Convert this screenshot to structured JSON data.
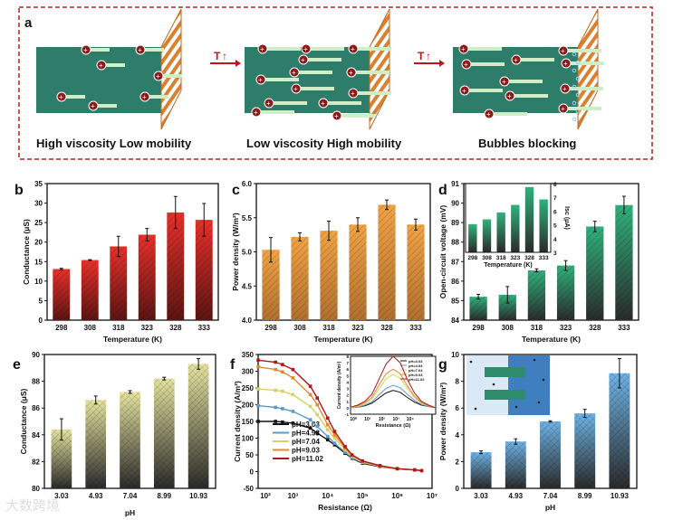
{
  "panel_a": {
    "label": "a",
    "captions": [
      "High viscosity Low mobility",
      "Low viscosity High mobility",
      "Bubbles blocking"
    ],
    "arrow_label": "T",
    "colors": {
      "liquid": "#2e7d6b",
      "membrane": "#d9812e",
      "ion": "#8b1a1a",
      "frame": "#b22222"
    }
  },
  "chart_data": [
    {
      "panel": "b",
      "type": "bar",
      "title": "",
      "xlabel": "Temperature (K)",
      "ylabel": "Conductance (μS)",
      "categories": [
        "298",
        "308",
        "318",
        "323",
        "328",
        "333"
      ],
      "values": [
        13.1,
        15.4,
        18.9,
        21.9,
        27.6,
        25.7
      ],
      "errors": [
        0.2,
        0.1,
        2.6,
        1.6,
        4.1,
        4.2
      ],
      "ylim": [
        0,
        35
      ],
      "yticks": [
        0,
        5,
        10,
        15,
        20,
        25,
        30,
        35
      ],
      "color": "#e8302a"
    },
    {
      "panel": "c",
      "type": "bar",
      "title": "",
      "xlabel": "Temperature (K)",
      "ylabel": "Power density (W/m²)",
      "categories": [
        "298",
        "308",
        "318",
        "323",
        "328",
        "333"
      ],
      "values": [
        5.03,
        5.22,
        5.31,
        5.4,
        5.69,
        5.4
      ],
      "errors": [
        0.18,
        0.06,
        0.14,
        0.1,
        0.07,
        0.08
      ],
      "ylim": [
        4.0,
        6.0
      ],
      "yticks": [
        "4.0",
        "4.5",
        "5.0",
        "5.5",
        "6.0"
      ],
      "color": "#f0a345"
    },
    {
      "panel": "d",
      "type": "bar",
      "title": "",
      "xlabel": "Temperature (K)",
      "ylabel": "Open-circuit voltage (mV)",
      "categories": [
        "298",
        "308",
        "318",
        "323",
        "328",
        "333"
      ],
      "values": [
        85.2,
        85.3,
        86.55,
        86.8,
        88.8,
        89.9
      ],
      "errors": [
        0.12,
        0.42,
        0.08,
        0.25,
        0.27,
        0.45
      ],
      "ylim": [
        84,
        91
      ],
      "yticks": [
        84,
        85,
        86,
        87,
        88,
        89,
        90,
        91
      ],
      "color": "#2fb27c",
      "inset": {
        "type": "bar",
        "xlabel": "Temperature (K)",
        "ylabel": "Isc (μA)",
        "categories": [
          "298",
          "308",
          "318",
          "323",
          "328",
          "333"
        ],
        "values": [
          5.05,
          5.4,
          5.9,
          6.45,
          7.75,
          6.85
        ],
        "ylim": [
          3,
          8
        ],
        "yticks": [
          3,
          4,
          5,
          6,
          7,
          8
        ]
      }
    },
    {
      "panel": "e",
      "type": "bar",
      "title": "",
      "xlabel": "pH",
      "ylabel": "Conductance (μS)",
      "categories": [
        "3.03",
        "4.93",
        "7.04",
        "8.99",
        "10.93"
      ],
      "values": [
        84.4,
        86.6,
        87.2,
        88.2,
        89.3
      ],
      "errors": [
        0.8,
        0.3,
        0.1,
        0.1,
        0.4
      ],
      "ylim": [
        80,
        90
      ],
      "yticks": [
        80,
        82,
        84,
        86,
        88,
        90
      ],
      "color": "#e6e4a0"
    },
    {
      "panel": "f",
      "type": "line",
      "title": "",
      "xlabel": "Resistance (Ω)",
      "ylabel": "Current density (A/m²)",
      "xscale": "log",
      "xlim": [
        2,
        7
      ],
      "xticks": [
        "10²",
        "10³",
        "10⁴",
        "10⁵",
        "10⁶",
        "10⁷"
      ],
      "ylim": [
        -50,
        350
      ],
      "yticks": [
        -50,
        0,
        50,
        100,
        150,
        200,
        250,
        300,
        350
      ],
      "legend": "bottom-left",
      "x_log10": [
        2,
        2.5,
        2.7,
        3,
        3.5,
        3.7,
        4,
        4.2,
        4.5,
        4.7,
        5,
        5.5,
        6,
        6.5,
        6.7
      ],
      "series": [
        {
          "name": "pH=3.03",
          "color": "#111111",
          "values": [
            150,
            150,
            148,
            145,
            130,
            115,
            95,
            80,
            55,
            40,
            25,
            15,
            8,
            5,
            3
          ]
        },
        {
          "name": "pH=4.93",
          "color": "#5b9bc8",
          "values": [
            197,
            192,
            188,
            180,
            155,
            135,
            105,
            85,
            58,
            42,
            27,
            16,
            8,
            5,
            3
          ]
        },
        {
          "name": "pH=7.04",
          "color": "#d8cf6a",
          "values": [
            247,
            243,
            240,
            230,
            195,
            170,
            125,
            100,
            65,
            45,
            28,
            16,
            8,
            5,
            3
          ]
        },
        {
          "name": "pH=9.03",
          "color": "#e08a2a",
          "values": [
            313,
            305,
            298,
            280,
            230,
            200,
            140,
            110,
            70,
            48,
            30,
            17,
            8,
            5,
            3
          ]
        },
        {
          "name": "pH=11.02",
          "color": "#b3161c",
          "values": [
            333,
            327,
            320,
            305,
            255,
            220,
            160,
            120,
            75,
            50,
            32,
            18,
            9,
            5,
            3
          ]
        }
      ],
      "inset": {
        "type": "line",
        "xlabel": "Resistance (Ω)",
        "ylabel": "Current density (A/m²)",
        "xlim": [
          0,
          6
        ],
        "xticks": [
          "10⁰",
          "10¹",
          "10²",
          "10³",
          "10⁴",
          "10⁵"
        ],
        "ylim": [
          -1,
          8
        ],
        "yticks": [
          -1,
          0,
          1,
          2,
          3,
          4,
          5,
          6,
          7,
          8
        ],
        "x_log10": [
          0,
          0.5,
          1,
          1.5,
          2,
          2.5,
          3,
          3.5,
          4,
          4.5,
          5,
          5.5,
          6
        ],
        "series": [
          {
            "name": "pH=3.03",
            "values": [
              0,
              0.1,
              0.3,
              0.7,
              1.5,
              2.3,
              2.7,
              2.4,
              1.6,
              0.9,
              0.4,
              0.2,
              0
            ]
          },
          {
            "name": "pH=4.93",
            "values": [
              0,
              0.1,
              0.4,
              0.9,
              2,
              3,
              3.5,
              3.1,
              2.1,
              1.2,
              0.5,
              0.2,
              0
            ]
          },
          {
            "name": "pH=7.04",
            "values": [
              0,
              0.2,
              0.6,
              1.3,
              2.9,
              4.5,
              5.2,
              4.6,
              3,
              1.6,
              0.7,
              0.3,
              0
            ]
          },
          {
            "name": "pH=9.03",
            "values": [
              0.1,
              0.3,
              0.8,
              1.6,
              3.5,
              5.3,
              6.0,
              5.3,
              3.4,
              1.8,
              0.8,
              0.3,
              0
            ]
          },
          {
            "name": "pH=11.02",
            "values": [
              0.1,
              0.4,
              1,
              2.1,
              4.4,
              6.8,
              8.0,
              7.0,
              4.4,
              2.3,
              1,
              0.4,
              0
            ]
          }
        ]
      }
    },
    {
      "panel": "g",
      "type": "bar",
      "title": "",
      "xlabel": "pH",
      "ylabel": "Power density (W/m²)",
      "categories": [
        "3.03",
        "4.93",
        "7.04",
        "8.99",
        "10.93"
      ],
      "values": [
        2.7,
        3.5,
        5.0,
        5.6,
        8.6
      ],
      "errors": [
        0.1,
        0.2,
        0.05,
        0.3,
        1.1
      ],
      "ylim": [
        0,
        10
      ],
      "yticks": [
        0,
        2,
        4,
        6,
        8,
        10
      ],
      "color": "#6fb4e6"
    }
  ],
  "watermark": "大数跨境"
}
